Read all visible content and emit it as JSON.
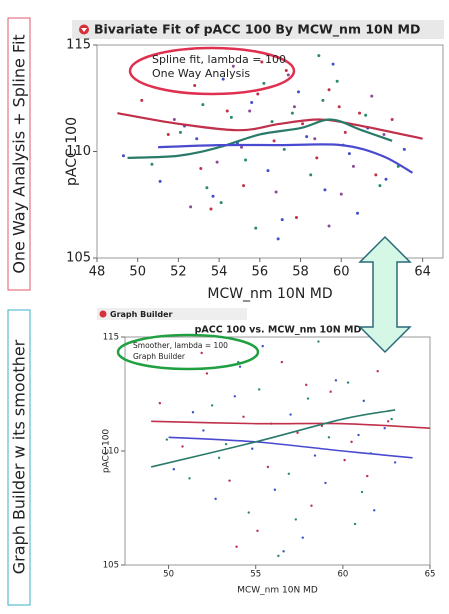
{
  "chart_data": [
    {
      "type": "scatter",
      "side_label": "One Way Analysis + Spline Fit",
      "title": "Bivariate Fit of pACC 100 By MCW_nm 10N MD",
      "x_label": "MCW_nm 10N MD",
      "y_label": "pACC 100",
      "annotations": [
        "Spline fit, lambda = 100",
        "One Way Analysis"
      ],
      "xlim": [
        48,
        65
      ],
      "xticks": [
        48,
        50,
        52,
        54,
        56,
        58,
        60,
        62,
        64
      ],
      "ylim": [
        105,
        115
      ],
      "yticks": [
        105,
        110,
        115
      ],
      "grid": false,
      "series": [
        {
          "color": "#c0304a",
          "x": [
            50.2,
            51.5,
            52.8,
            53.1,
            54.4,
            55.2,
            55.9,
            56.7,
            57.3,
            58.1,
            58.8,
            59.4,
            60.2,
            60.9,
            61.7,
            62.5,
            53.6,
            56.1,
            59.9,
            57.8
          ],
          "values": [
            112.4,
            110.8,
            113.1,
            109.2,
            111.9,
            108.4,
            112.7,
            110.5,
            113.8,
            111.3,
            109.7,
            112.9,
            110.9,
            111.8,
            108.9,
            111.5,
            107.3,
            114.2,
            112.1,
            106.9
          ]
        },
        {
          "color": "#4050c8",
          "x": [
            49.3,
            51.1,
            52.3,
            53.7,
            54.9,
            55.6,
            56.4,
            57.1,
            58.3,
            59.2,
            60.4,
            61.3,
            62.2,
            63.1,
            54.2,
            57.9,
            60.8,
            52.9,
            56.9,
            59.6
          ],
          "values": [
            109.8,
            108.6,
            111.2,
            107.9,
            110.4,
            112.3,
            109.1,
            106.8,
            110.7,
            108.2,
            109.9,
            111.1,
            108.7,
            110.1,
            113.4,
            112.8,
            107.1,
            110.6,
            105.9,
            114.1
          ]
        },
        {
          "color": "#2a8a6a",
          "x": [
            50.7,
            52.1,
            53.4,
            54.6,
            55.3,
            56.2,
            57.6,
            58.5,
            59.1,
            60.1,
            61.2,
            62.8,
            55.8,
            58.9,
            53.2,
            61.9,
            57.2,
            54.1,
            59.8,
            56.6
          ],
          "values": [
            109.4,
            110.9,
            108.3,
            111.6,
            109.6,
            113.2,
            111.8,
            108.9,
            112.4,
            110.3,
            111.7,
            109.3,
            106.4,
            114.5,
            112.2,
            108.4,
            110.1,
            107.6,
            113.3,
            111.4
          ]
        },
        {
          "color": "#8a4a9a",
          "x": [
            51.8,
            53.9,
            55.1,
            56.8,
            57.7,
            58.7,
            60.6,
            61.5,
            54.7,
            52.6,
            59.4,
            62.1,
            55.5,
            57.4,
            60.0
          ],
          "values": [
            111.5,
            109.5,
            110.2,
            108.1,
            112.1,
            110.6,
            109.3,
            112.6,
            114.0,
            107.4,
            106.5,
            110.8,
            111.9,
            113.6,
            108.0
          ]
        }
      ],
      "lines": [
        {
          "color": "#c0304a",
          "x": [
            49,
            52,
            55,
            57,
            59,
            61,
            64
          ],
          "values": [
            111.8,
            111.3,
            111,
            111.3,
            111.5,
            111.2,
            110.6
          ]
        },
        {
          "color": "#2a7a6a",
          "x": [
            49.5,
            52,
            54,
            56,
            58,
            59.5,
            61,
            62.5
          ],
          "values": [
            109.7,
            109.8,
            110.2,
            110.8,
            111.1,
            111.5,
            111,
            110.5
          ]
        },
        {
          "color": "#4a4ad0",
          "x": [
            51,
            54,
            57,
            60,
            62,
            63.5
          ],
          "values": [
            110.2,
            110.3,
            110.3,
            110.3,
            109.8,
            109
          ]
        }
      ]
    },
    {
      "type": "scatter",
      "side_label": "Graph Builder w its smoother",
      "header": "Graph Builder",
      "title": "pACC 100 vs. MCW_nm 10N MD",
      "x_label": "MCW_nm 10N MD",
      "y_label": "pACC 100",
      "annotations": [
        "Smoother, lambda = 100",
        "Graph Builder"
      ],
      "xlim": [
        47.5,
        65
      ],
      "xticks": [
        50,
        55,
        60,
        65
      ],
      "ylim": [
        105,
        115
      ],
      "yticks": [
        105,
        110,
        115
      ],
      "grid": false,
      "series": [
        {
          "color": "#c0304a",
          "x": [
            49.5,
            50.8,
            52.2,
            53.5,
            54.3,
            55.7,
            56.5,
            57.4,
            58.2,
            59.3,
            60.5,
            61.4,
            62.6,
            51.9,
            55.1,
            57.9,
            60.1,
            53.9,
            58.8,
            62.0
          ],
          "values": [
            112.1,
            110.2,
            113.4,
            108.7,
            111.5,
            109.3,
            113.9,
            110.8,
            107.6,
            112.6,
            110.4,
            108.9,
            111.3,
            114.3,
            106.5,
            112.9,
            109.6,
            105.8,
            111.1,
            113.5
          ]
        },
        {
          "color": "#4050c8",
          "x": [
            50.3,
            51.4,
            52.7,
            53.8,
            54.8,
            56.1,
            57.0,
            58.4,
            59.6,
            60.9,
            61.8,
            63.0,
            55.4,
            57.7,
            52.0,
            59.0,
            54.1,
            61.2,
            56.6,
            62.4
          ],
          "values": [
            109.2,
            111.7,
            107.9,
            112.4,
            110.1,
            108.3,
            111.6,
            109.8,
            113.1,
            110.7,
            107.4,
            109.5,
            114.6,
            106.2,
            110.9,
            108.6,
            113.7,
            112.2,
            105.6,
            111.0
          ]
        },
        {
          "color": "#2a8a6a",
          "x": [
            49.9,
            51.2,
            52.5,
            53.3,
            54.6,
            55.9,
            56.9,
            58.0,
            59.2,
            60.3,
            61.6,
            62.8,
            54.0,
            57.3,
            60.7,
            52.9,
            58.6,
            55.2,
            61.1,
            56.3
          ],
          "values": [
            110.5,
            108.8,
            112.0,
            110.3,
            107.3,
            111.2,
            109.0,
            112.3,
            110.6,
            113.0,
            109.9,
            111.4,
            113.9,
            107.0,
            106.8,
            109.7,
            114.8,
            112.7,
            108.2,
            105.4
          ]
        }
      ],
      "lines": [
        {
          "color": "#c0304a",
          "x": [
            49,
            55,
            60,
            65
          ],
          "values": [
            111.3,
            111.2,
            111.2,
            111.0
          ]
        },
        {
          "color": "#4a4ad0",
          "x": [
            50,
            55,
            60,
            64
          ],
          "values": [
            110.6,
            110.4,
            110,
            109.7
          ]
        },
        {
          "color": "#2a7a6a",
          "x": [
            49,
            55,
            60,
            63
          ],
          "values": [
            109.3,
            110.4,
            111.4,
            111.8
          ]
        }
      ]
    }
  ]
}
